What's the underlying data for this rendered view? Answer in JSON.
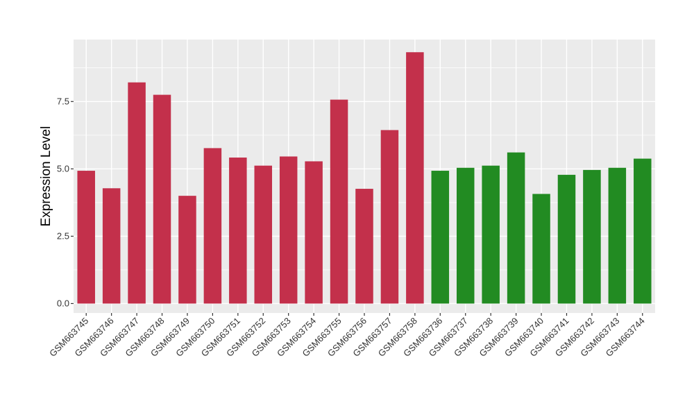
{
  "chart_data": {
    "type": "bar",
    "title": "",
    "xlabel": "",
    "ylabel": "Expression Level",
    "ylim": [
      -0.35,
      9.8
    ],
    "yticks": [
      0.0,
      2.5,
      5.0,
      7.5
    ],
    "ytick_labels": [
      "0.0",
      "2.5",
      "5.0",
      "7.5"
    ],
    "grid": true,
    "legend": "none",
    "panel_color": "#ebebeb",
    "grid_color": "#ffffff",
    "categories": [
      "GSM663745",
      "GSM663746",
      "GSM663747",
      "GSM663748",
      "GSM663749",
      "GSM663750",
      "GSM663751",
      "GSM663752",
      "GSM663753",
      "GSM663754",
      "GSM663755",
      "GSM663756",
      "GSM663757",
      "GSM663758",
      "GSM663736",
      "GSM663737",
      "GSM663738",
      "GSM663739",
      "GSM663740",
      "GSM663741",
      "GSM663742",
      "GSM663743",
      "GSM663744"
    ],
    "values": [
      4.93,
      4.28,
      8.21,
      7.75,
      4.0,
      5.77,
      5.42,
      5.12,
      5.46,
      5.28,
      7.57,
      4.26,
      6.44,
      9.33,
      4.93,
      5.04,
      5.12,
      5.61,
      4.07,
      4.78,
      4.96,
      5.04,
      5.38
    ],
    "bar_colors": [
      "#c3304b",
      "#c3304b",
      "#c3304b",
      "#c3304b",
      "#c3304b",
      "#c3304b",
      "#c3304b",
      "#c3304b",
      "#c3304b",
      "#c3304b",
      "#c3304b",
      "#c3304b",
      "#c3304b",
      "#c3304b",
      "#228b22",
      "#228b22",
      "#228b22",
      "#228b22",
      "#228b22",
      "#228b22",
      "#228b22",
      "#228b22",
      "#228b22"
    ]
  }
}
